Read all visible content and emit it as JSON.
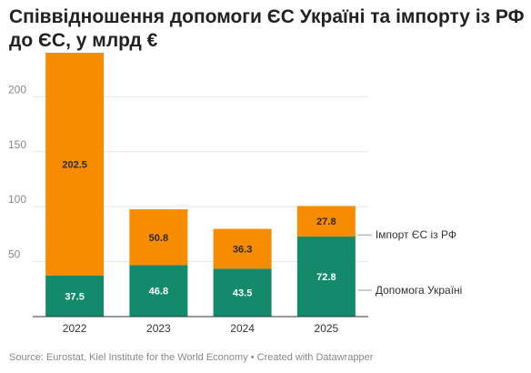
{
  "title": "Співвідношення допомоги ЄС Україні та імпорту із РФ до ЄС, у млрд €",
  "source": {
    "text": "Source: Eurostat, Kiel Institute for the World Economy",
    "separator": " • ",
    "credit": "Created with Datawrapper"
  },
  "colors": {
    "aid": "#148a6c",
    "imports": "#f78c00",
    "aid_label": "#ffffff",
    "imports_label": "#2a2a2a",
    "grid": "#e6e6e6",
    "axis": "#333333"
  },
  "chart_data": {
    "type": "bar",
    "stacked": true,
    "title": "Співвідношення допомоги ЄС Україні та імпорту із РФ до ЄС, у млрд €",
    "xlabel": "",
    "ylabel": "",
    "categories": [
      "2022",
      "2023",
      "2024",
      "2025"
    ],
    "series": [
      {
        "name": "Допомога Україні",
        "values": [
          37.5,
          46.8,
          43.5,
          72.8
        ],
        "labels": [
          "37.5",
          "46.8",
          "43.5",
          "72.8"
        ]
      },
      {
        "name": "Імпорт ЄС із РФ",
        "values": [
          202.5,
          50.8,
          36.3,
          27.8
        ],
        "labels": [
          "202.5",
          "50.8",
          "36.3",
          "27.8"
        ]
      }
    ],
    "ylim": [
      0,
      240
    ],
    "yticks": [
      50,
      100,
      150,
      200
    ],
    "grid": true,
    "legend": "right, inline labels next to last bar"
  }
}
